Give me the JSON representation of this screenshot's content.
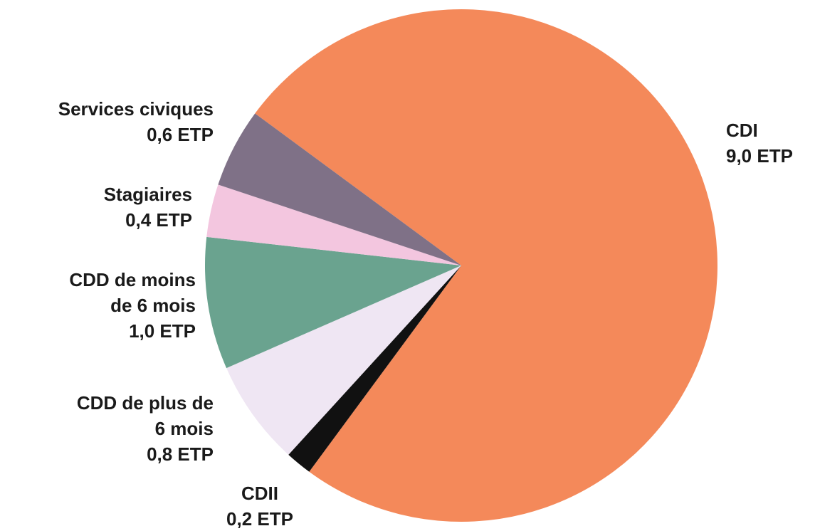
{
  "chart_data": {
    "type": "pie",
    "categories": [
      "CDI",
      "CDII",
      "CDD de plus de 6 mois",
      "CDD de moins de 6 mois",
      "Stagiaires",
      "Services civiques"
    ],
    "values": [
      9.0,
      0.2,
      0.8,
      1.0,
      0.4,
      0.6
    ],
    "value_labels": [
      "9,0 ETP",
      "0,2 ETP",
      "0,8 ETP",
      "1,0 ETP",
      "0,4 ETP",
      "0,6 ETP"
    ],
    "colors": [
      "#f4895a",
      "#111111",
      "#efe6f3",
      "#6aa38f",
      "#f3c6df",
      "#7f7187"
    ]
  }
}
